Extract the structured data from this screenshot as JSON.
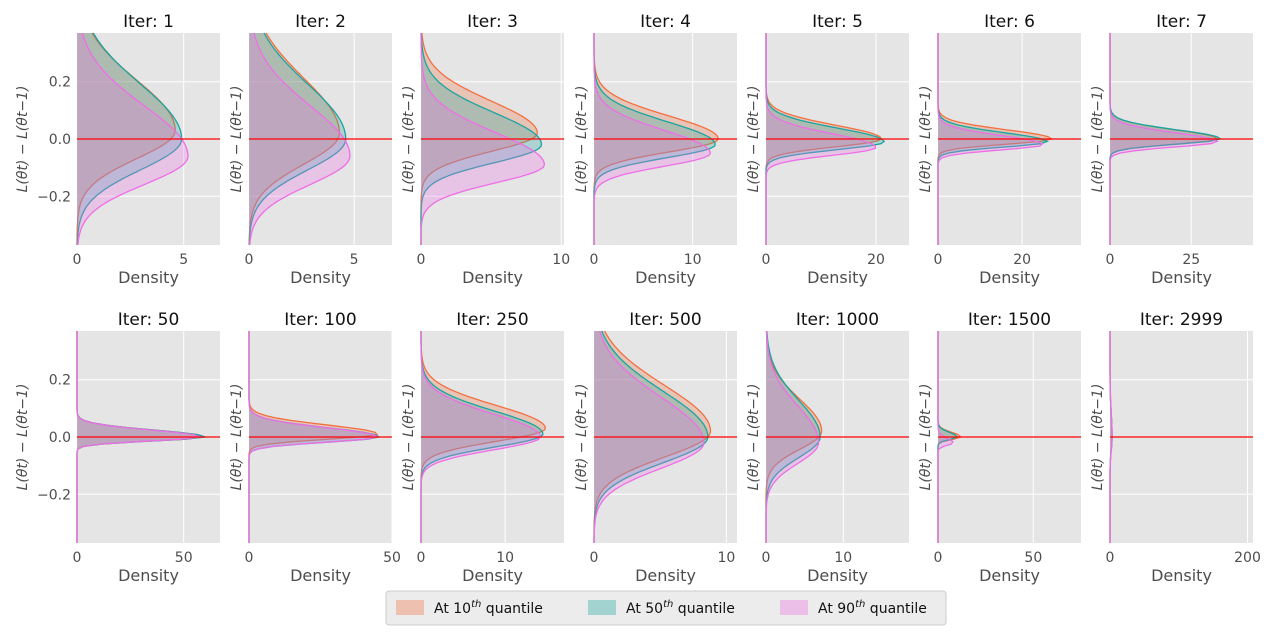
{
  "chart_data": {
    "type": "area",
    "description_axis": "horizontal density distributions of loss differences",
    "ylabel": "L(θt) − L(θt−1)",
    "xlabel": "Density",
    "ylim": [
      -0.37,
      0.37
    ],
    "y_ticks": [
      -0.2,
      0.0,
      0.2
    ],
    "y_tick_labels": [
      "−0.2",
      "0.0",
      "0.2"
    ],
    "reference_line": {
      "y": 0.0,
      "color": "#ff0000"
    },
    "colors": {
      "q10": "#f2703f",
      "q50": "#1aa5a0",
      "q90": "#ee6ee6",
      "panel_bg": "#e5e5e5",
      "grid": "#ffffff"
    },
    "legend": {
      "placement": "bottom-center",
      "entries": [
        {
          "prefix": "At 10",
          "sup": "th",
          "suffix": " quantile",
          "key": "q10"
        },
        {
          "prefix": "At 50",
          "sup": "th",
          "suffix": " quantile",
          "key": "q50"
        },
        {
          "prefix": "At 90",
          "sup": "th",
          "suffix": " quantile",
          "key": "q90"
        }
      ]
    },
    "panels": [
      {
        "title": "Iter: 1",
        "xmax": 6.7,
        "xticks": [
          0,
          5
        ],
        "peaks": [
          4.6,
          4.9,
          5.2
        ],
        "modes": [
          0.03,
          0.0,
          -0.06
        ],
        "spreads": [
          0.11,
          0.12,
          0.11
        ]
      },
      {
        "title": "Iter: 2",
        "xmax": 6.8,
        "xticks": [
          0,
          5
        ],
        "peaks": [
          4.3,
          4.6,
          4.8
        ],
        "modes": [
          0.02,
          0.0,
          -0.06
        ],
        "spreads": [
          0.12,
          0.12,
          0.11
        ]
      },
      {
        "title": "Iter: 3",
        "xmax": 10.2,
        "xticks": [
          0,
          10
        ],
        "peaks": [
          8.3,
          8.6,
          8.8
        ],
        "modes": [
          0.02,
          -0.02,
          -0.09
        ],
        "spreads": [
          0.07,
          0.07,
          0.07
        ]
      },
      {
        "title": "Iter: 4",
        "xmax": 14.5,
        "xticks": [
          0,
          10
        ],
        "peaks": [
          12.6,
          12.3,
          11.8
        ],
        "modes": [
          0.0,
          -0.02,
          -0.05
        ],
        "spreads": [
          0.05,
          0.05,
          0.05
        ]
      },
      {
        "title": "Iter: 5",
        "xmax": 26.0,
        "xticks": [
          0,
          20
        ],
        "peaks": [
          21.0,
          21.5,
          20.0
        ],
        "modes": [
          0.0,
          -0.01,
          -0.03
        ],
        "spreads": [
          0.03,
          0.03,
          0.03
        ]
      },
      {
        "title": "Iter: 6",
        "xmax": 34.0,
        "xticks": [
          0,
          20
        ],
        "peaks": [
          27.0,
          26.0,
          25.0
        ],
        "modes": [
          0.0,
          -0.01,
          -0.02
        ],
        "spreads": [
          0.02,
          0.02,
          0.02
        ]
      },
      {
        "title": "Iter: 7",
        "xmax": 44.0,
        "xticks": [
          0,
          25
        ],
        "peaks": [
          33.0,
          34.0,
          33.0
        ],
        "modes": [
          0.0,
          0.0,
          -0.01
        ],
        "spreads": [
          0.02,
          0.02,
          0.02
        ]
      },
      {
        "title": "Iter: 50",
        "xmax": 67.0,
        "xticks": [
          0,
          50
        ],
        "peaks": [
          60.0,
          60.0,
          58.0
        ],
        "modes": [
          0.0,
          0.0,
          0.0
        ],
        "spreads": [
          0.015,
          0.015,
          0.015
        ]
      },
      {
        "title": "Iter: 100",
        "xmax": 50.0,
        "xticks": [
          0,
          50
        ],
        "peaks": [
          45.0,
          45.5,
          45.0
        ],
        "modes": [
          0.01,
          0.0,
          0.0
        ],
        "spreads": [
          0.02,
          0.02,
          0.02
        ]
      },
      {
        "title": "Iter: 250",
        "xmax": 17.0,
        "xticks": [
          0,
          10
        ],
        "peaks": [
          14.8,
          14.5,
          14.2
        ],
        "modes": [
          0.03,
          0.01,
          0.0
        ],
        "spreads": [
          0.05,
          0.05,
          0.05
        ]
      },
      {
        "title": "Iter: 500",
        "xmax": 10.8,
        "xticks": [
          0,
          10
        ],
        "peaks": [
          8.8,
          8.6,
          8.3
        ],
        "modes": [
          0.02,
          0.0,
          -0.02
        ],
        "spreads": [
          0.1,
          0.1,
          0.1
        ]
      },
      {
        "title": "Iter: 1000",
        "xmax": 18.5,
        "xticks": [
          0,
          10
        ],
        "peaks": [
          7.2,
          7.0,
          6.8
        ],
        "modes": [
          0.02,
          0.0,
          -0.02
        ],
        "spreads": [
          0.07,
          0.08,
          0.08
        ]
      },
      {
        "title": "Iter: 1500",
        "xmax": 75.0,
        "xticks": [
          0,
          50
        ],
        "peaks": [
          12.0,
          10.0,
          8.0
        ],
        "modes": [
          0.0,
          0.0,
          -0.02
        ],
        "spreads": [
          0.01,
          0.01,
          0.01
        ]
      },
      {
        "title": "Iter: 2999",
        "xmax": 208.0,
        "xticks": [
          0,
          200
        ],
        "peaks": [
          3.0,
          3.0,
          3.0
        ],
        "modes": [
          0.0,
          0.0,
          0.0
        ],
        "spreads": [
          0.05,
          0.05,
          0.05
        ]
      }
    ]
  }
}
